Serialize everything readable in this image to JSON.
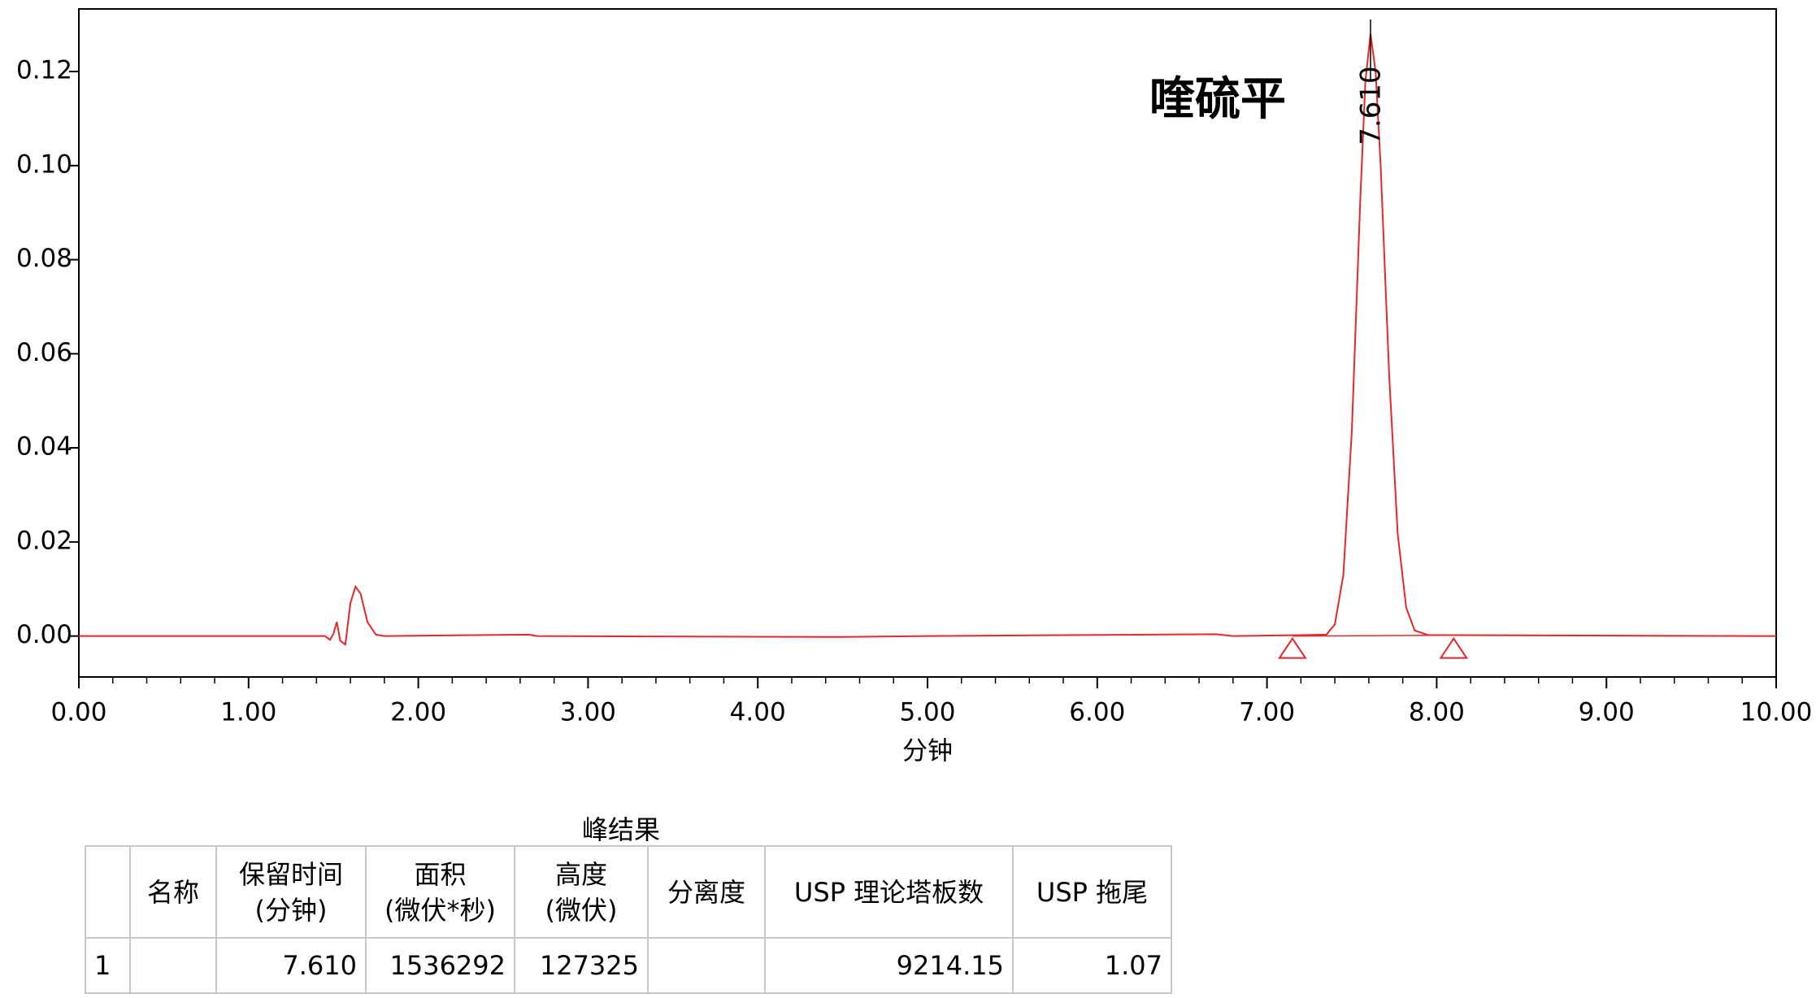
{
  "chart_data": {
    "type": "line",
    "xlabel": "分钟",
    "annotations": [
      "喹硫平"
    ],
    "peak_label": {
      "x": 7.61,
      "text": "7.610"
    },
    "series": [
      {
        "color": "#e8262a",
        "x": [
          0,
          1.0,
          1.45,
          1.48,
          1.5,
          1.52,
          1.54,
          1.57,
          1.6,
          1.63,
          1.66,
          1.7,
          1.75,
          1.8,
          2.65,
          2.7,
          4.5,
          5.0,
          6.7,
          6.8,
          7.2,
          7.35,
          7.4,
          7.45,
          7.5,
          7.55,
          7.58,
          7.61,
          7.64,
          7.67,
          7.72,
          7.77,
          7.82,
          7.87,
          7.95,
          8.1,
          10.0
        ],
        "values": [
          0,
          0,
          0,
          -0.0008,
          0.0005,
          0.003,
          -0.001,
          -0.0018,
          0.007,
          0.0105,
          0.009,
          0.003,
          0.0003,
          0,
          0.0003,
          0,
          -0.0002,
          0,
          0.0004,
          0,
          0.0002,
          0.0003,
          0.0025,
          0.013,
          0.0436,
          0.093,
          0.118,
          0.128,
          0.12,
          0.0998,
          0.0554,
          0.0218,
          0.0061,
          0.0012,
          0.0002,
          0.0002,
          0
        ]
      }
    ],
    "integration_marks": [
      7.15,
      8.1
    ],
    "xlim": [
      0,
      10
    ],
    "ylim": [
      -0.0087,
      0.1333
    ],
    "xticks": [
      {
        "value": 0,
        "label": "0.00"
      },
      {
        "value": 1,
        "label": "1.00"
      },
      {
        "value": 2,
        "label": "2.00"
      },
      {
        "value": 3,
        "label": "3.00"
      },
      {
        "value": 4,
        "label": "4.00"
      },
      {
        "value": 5,
        "label": "5.00"
      },
      {
        "value": 6,
        "label": "6.00"
      },
      {
        "value": 7,
        "label": "7.00"
      },
      {
        "value": 8,
        "label": "8.00"
      },
      {
        "value": 9,
        "label": "9.00"
      },
      {
        "value": 10,
        "label": "10.00"
      }
    ],
    "xminorticks": [
      0.2,
      0.4,
      0.6,
      0.8,
      1.2,
      1.4,
      1.6,
      1.8,
      2.2,
      2.4,
      2.6,
      2.8,
      3.2,
      3.4,
      3.6,
      3.8,
      4.2,
      4.4,
      4.6,
      4.8,
      5.2,
      5.4,
      5.6,
      5.8,
      6.2,
      6.4,
      6.6,
      6.8,
      7.2,
      7.4,
      7.6,
      7.8,
      8.2,
      8.4,
      8.6,
      8.8,
      9.2,
      9.4,
      9.6,
      9.8
    ],
    "yticks": [
      {
        "value": 0,
        "label": "0.00"
      },
      {
        "value": 0.02,
        "label": "0.02"
      },
      {
        "value": 0.04,
        "label": "0.04"
      },
      {
        "value": 0.06,
        "label": "0.06"
      },
      {
        "value": 0.08,
        "label": "0.08"
      },
      {
        "value": 0.1,
        "label": "0.10"
      },
      {
        "value": 0.12,
        "label": "0.12"
      }
    ]
  },
  "table": {
    "title": "峰结果",
    "header": [
      null,
      [
        "名称"
      ],
      [
        "保留时间",
        "(分钟)"
      ],
      [
        "面积",
        "(微伏*秒)"
      ],
      [
        "高度",
        "(微伏)"
      ],
      [
        "分离度"
      ],
      [
        "USP 理论塔板数"
      ],
      [
        "USP 拖尾"
      ]
    ],
    "rows": [
      [
        "1",
        null,
        "7.610",
        "1536292",
        "127325",
        null,
        "9214.15",
        "1.07"
      ]
    ]
  }
}
